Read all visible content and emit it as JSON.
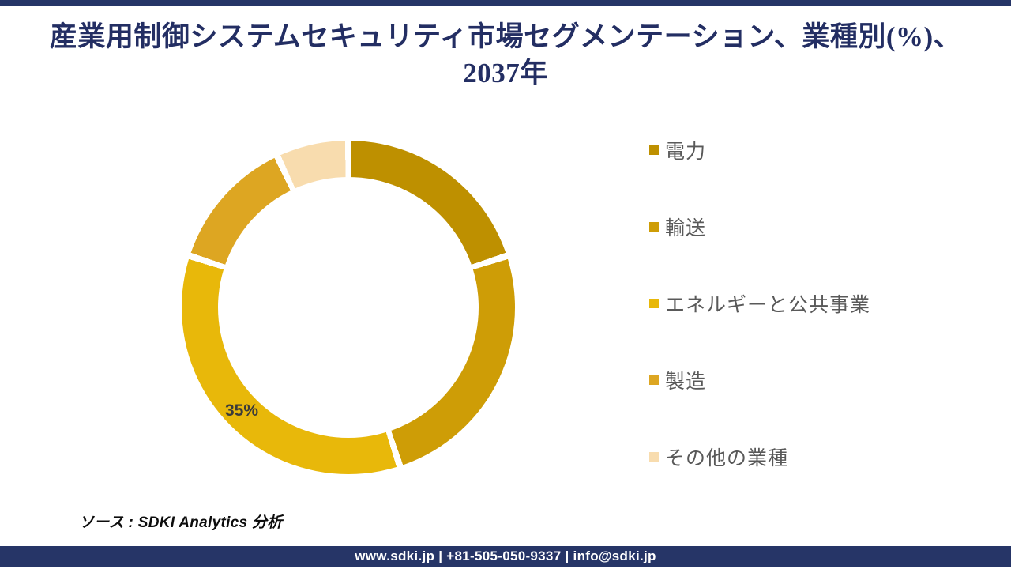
{
  "title": {
    "line1": "産業用制御システムセキュリティ市場セグメンテーション、業種別(%)、",
    "line2": "2037年"
  },
  "chart_data": {
    "type": "pie",
    "subtype": "donut",
    "title": "産業用制御システムセキュリティ市場セグメンテーション、業種別(%)、2037年",
    "unit": "%",
    "year": "2037",
    "categories": [
      "電力",
      "輸送",
      "エネルギーと公共事業",
      "製造",
      "その他の業種"
    ],
    "values": [
      20,
      25,
      35,
      13,
      7
    ],
    "colors": [
      "#BE9000",
      "#CE9D06",
      "#E8B80A",
      "#DDA622",
      "#F8DCAE"
    ],
    "labeled_value": {
      "category": "エネルギーと公共事業",
      "value": 35,
      "text": "35%"
    },
    "legend_position": "right",
    "start_angle_deg": 0,
    "direction": "clockwise",
    "hole_ratio": 0.78
  },
  "source": {
    "text": "ソース : SDKI Analytics 分析"
  },
  "footer": {
    "text": "www.sdki.jp | +81-505-050-9337 | info@sdki.jp"
  },
  "theme": {
    "accent_navy": "#263567",
    "title_color": "#232E63",
    "legend_text_color": "#595959",
    "slice_label_color": "#3B3B3B",
    "background": "#ffffff"
  }
}
